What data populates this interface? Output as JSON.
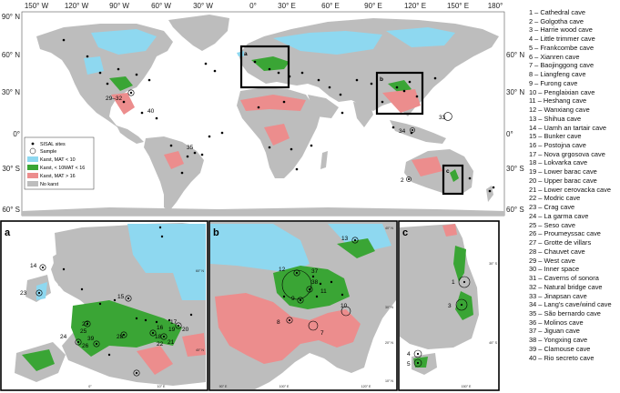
{
  "main_map": {
    "lon_labels": [
      "150° W",
      "120° W",
      "90° W",
      "60° W",
      "30° W",
      "0°",
      "30° E",
      "60° E",
      "90° E",
      "120° E",
      "150° E",
      "180°"
    ],
    "lat_labels_left": [
      "90° N",
      "60° N",
      "30° N",
      "0°",
      "30° S",
      "60° S"
    ],
    "lat_labels_right": [
      "60° N",
      "30° N",
      "0°",
      "30° S",
      "60° S"
    ],
    "box_labels": [
      "a",
      "b",
      "c"
    ],
    "site_labels": [
      {
        "id": "29_32",
        "text": "29–32"
      },
      {
        "id": "40",
        "text": "40"
      },
      {
        "id": "35",
        "text": "35"
      },
      {
        "id": "33",
        "text": "33"
      },
      {
        "id": "34",
        "text": "34"
      },
      {
        "id": "2",
        "text": "2"
      }
    ],
    "colors": {
      "blue": "#8ed8f0",
      "green": "#3aa535",
      "pink": "#ec8d8d",
      "land": "#bdbdbd",
      "box": "#000000"
    }
  },
  "legend": {
    "items": [
      {
        "label": "SISAL sites",
        "symbol": "dot"
      },
      {
        "label": "Sample",
        "symbol": "circle"
      },
      {
        "label": "Karst, MAT < 10",
        "symbol": "blue"
      },
      {
        "label": "Karst, < 10MAT < 16",
        "symbol": "green"
      },
      {
        "label": "Karst, MAT > 16",
        "symbol": "pink"
      },
      {
        "label": "No karst",
        "symbol": "grey"
      }
    ]
  },
  "panel_a": {
    "letter": "a",
    "site_labels": [
      "14",
      "23",
      "15",
      "17",
      "27",
      "24",
      "25",
      "28",
      "39",
      "26",
      "16",
      "18",
      "19",
      "20",
      "21",
      "22"
    ],
    "lon_ticks": [
      "0°",
      "10° E"
    ],
    "lat_ticks": [
      "60° N",
      "40° N"
    ]
  },
  "panel_b": {
    "letter": "b",
    "site_labels": [
      "13",
      "12",
      "37",
      "38",
      "10",
      "9",
      "8",
      "7",
      "11"
    ],
    "lon_ticks": [
      "90° E",
      "100° E",
      "120° E"
    ],
    "lat_ticks": [
      "40° N",
      "30° N",
      "20° N",
      "10° N"
    ]
  },
  "panel_c": {
    "letter": "c",
    "site_labels": [
      "1",
      "3",
      "4",
      "5"
    ],
    "lon_ticks": [
      "150° E"
    ],
    "lat_ticks": [
      "30° S",
      "40° S"
    ]
  },
  "caves": [
    "1 – Cathedral cave",
    "2 – Golgotha cave",
    "3 – Harrie wood cave",
    "4 – Little trimmer cave",
    "5 – Frankcombe cave",
    "6 – Xianren cave",
    "7 – Baojinggong cave",
    "8 – Liangfeng cave",
    "9 – Furong cave",
    "10 – Penglaixian cave",
    "11 – Heshang cave",
    "12 – Wanxiang cave",
    "13 – Shihua cave",
    "14 – Uamh an tartair cave",
    "15 – Bunker cave",
    "16 – Postojna cave",
    "17 – Nova grgosova cave",
    "18 – Lokvarka cave",
    "19 – Lower barac cave",
    "20 – Upper barac cave",
    "21 – Lower cerovacka cave",
    "22 – Modric cave",
    "23 – Crag cave",
    "24 – La garma cave",
    "25 – Seso cave",
    "26 – Proumeyssac cave",
    "27 – Grotte de villars",
    "28 – Chauvet cave",
    "29 – West cave",
    "30 – Inner space",
    "31 – Caverns of sonora",
    "32 – Natural bridge cave",
    "33 – Jinapsan cave",
    "34 – Lang's cave/wind cave",
    "35 – São bernardo cave",
    "36 – Molinos cave",
    "37 – Jiguan cave",
    "38 – Yongxing cave",
    "39 – Clamouse cave",
    "40 – Rio secreto cave"
  ]
}
